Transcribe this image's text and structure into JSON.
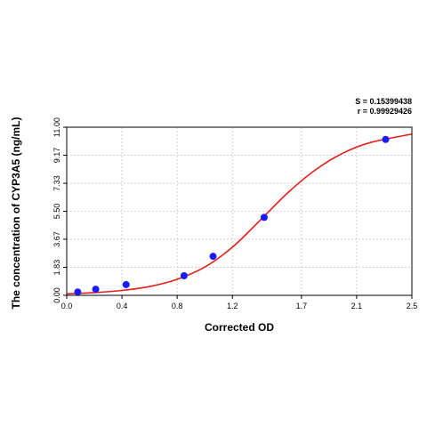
{
  "chart_data": {
    "type": "scatter",
    "xlabel": "Corrected OD",
    "ylabel": "The concentration of CYP3A5 (ng/mL)",
    "xlim": [
      0.0,
      2.5
    ],
    "ylim": [
      0.0,
      11.0
    ],
    "x_ticks": [
      "0.0",
      "0.4",
      "0.8",
      "1.2",
      "1.7",
      "2.1",
      "2.5"
    ],
    "x_tick_values": [
      0.0,
      0.4,
      0.8,
      1.2,
      1.7,
      2.1,
      2.5
    ],
    "y_ticks": [
      "0.00",
      "1.83",
      "3.67",
      "5.50",
      "7.33",
      "9.17",
      "11.00"
    ],
    "y_tick_values": [
      0.0,
      1.83,
      3.67,
      5.5,
      7.33,
      9.17,
      11.0
    ],
    "grid": true,
    "stats": {
      "s": "S = 0.15399438",
      "r": "r = 0.99929426"
    },
    "series": [
      {
        "points": [
          {
            "x": 0.08,
            "y": 0.22
          },
          {
            "x": 0.21,
            "y": 0.4
          },
          {
            "x": 0.43,
            "y": 0.7
          },
          {
            "x": 0.85,
            "y": 1.28
          },
          {
            "x": 1.06,
            "y": 2.55
          },
          {
            "x": 1.43,
            "y": 5.1
          },
          {
            "x": 2.31,
            "y": 10.2
          }
        ]
      }
    ],
    "fit_curve": {
      "type": "4-parameter logistic",
      "x": [
        0.0,
        0.2,
        0.4,
        0.6,
        0.8,
        1.0,
        1.2,
        1.4,
        1.6,
        1.8,
        2.0,
        2.2,
        2.5
      ],
      "y": [
        0.1,
        0.18,
        0.32,
        0.58,
        1.05,
        1.85,
        3.15,
        4.9,
        6.7,
        8.2,
        9.3,
        10.0,
        10.55
      ]
    },
    "colors": {
      "points": "#1a1aff",
      "curve": "#e0201b",
      "grid": "#c8c8c8"
    }
  }
}
